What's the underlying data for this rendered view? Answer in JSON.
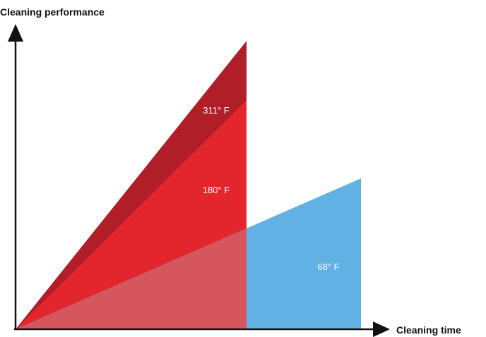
{
  "axes": {
    "y_label": "Cleaning performance",
    "x_label": "Cleaning time"
  },
  "regions": [
    {
      "key": "t311",
      "label": "311° F",
      "color": "#b01f27"
    },
    {
      "key": "t180",
      "label": "180° F",
      "color": "#e3262d"
    },
    {
      "key": "overlap",
      "label": "",
      "color": "#d6565e"
    },
    {
      "key": "t68",
      "label": "68° F",
      "color": "#62b1e4"
    }
  ]
}
